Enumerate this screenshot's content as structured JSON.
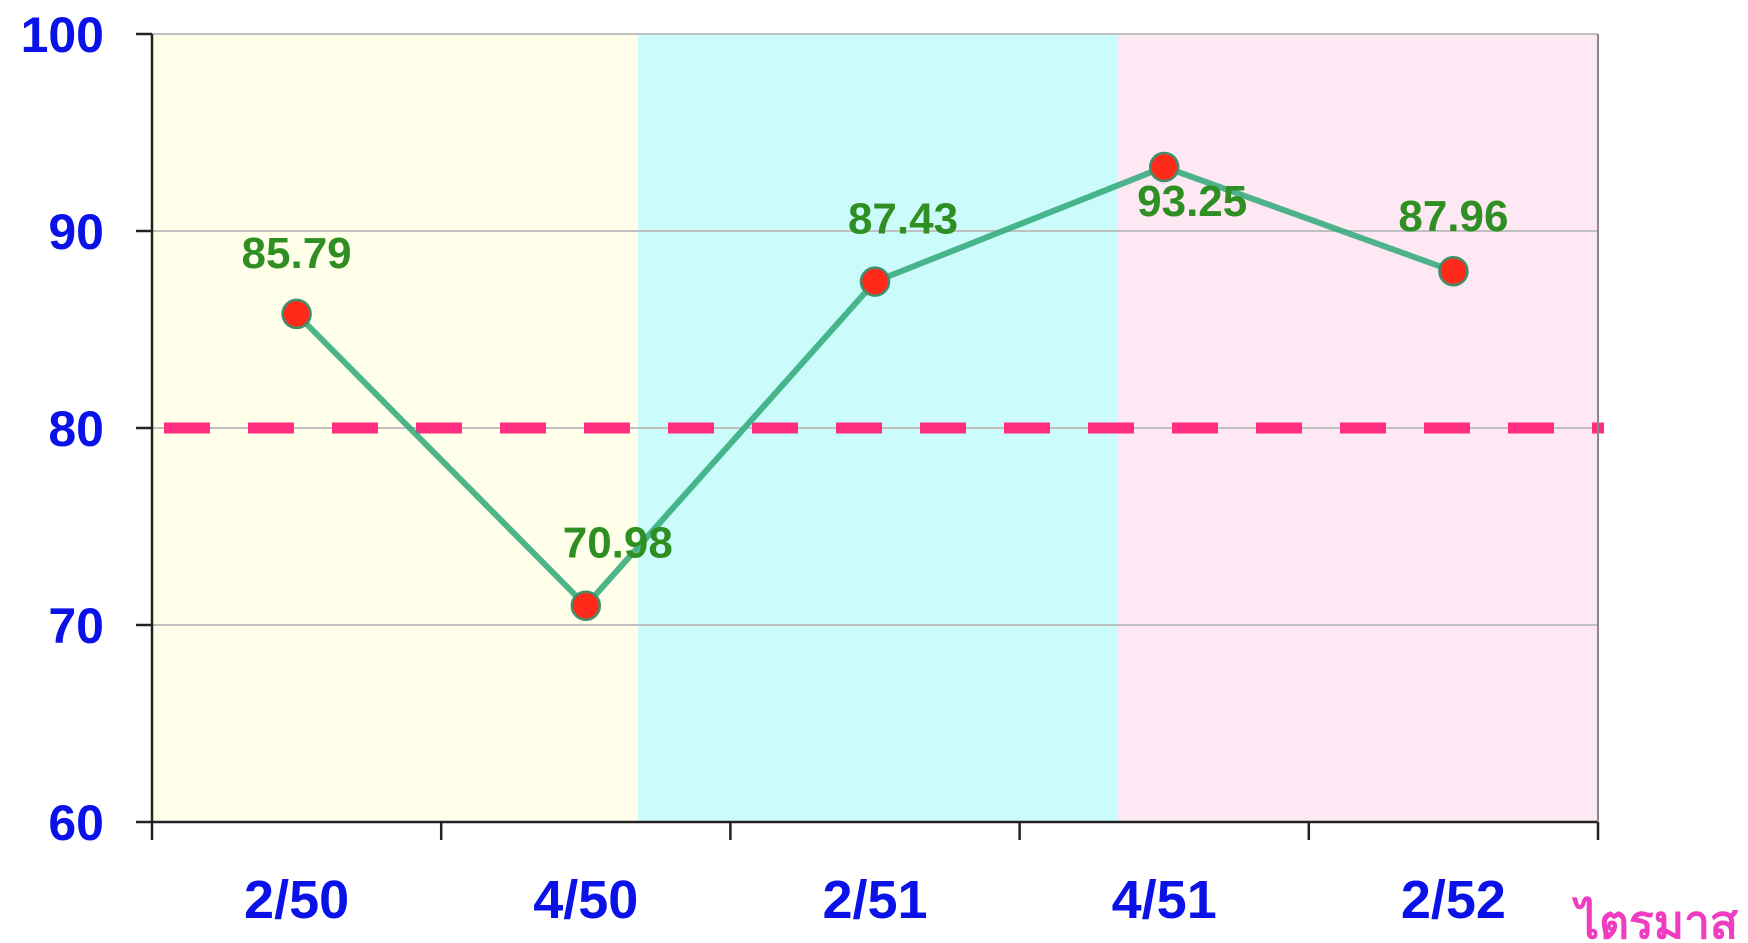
{
  "chart_data": {
    "type": "line",
    "categories": [
      "2/50",
      "4/50",
      "2/51",
      "4/51",
      "2/52"
    ],
    "series": [
      {
        "values": [
          85.79,
          70.98,
          87.43,
          93.25,
          87.96
        ],
        "color": "#2fa878",
        "marker_color": "#ff2a1a"
      }
    ],
    "data_labels": [
      "85.79",
      "70.98",
      "87.43",
      "93.25",
      "87.96"
    ],
    "xlabel": "ไตรมาส",
    "ylabel": "",
    "ylim": [
      60,
      100
    ],
    "yticks": [
      60,
      70,
      80,
      90,
      100
    ],
    "reference_line": {
      "value": 80,
      "style": "dashed",
      "color": "#ff2d80"
    },
    "background_bands": [
      {
        "from_category": 0,
        "to_category": 1,
        "color": "#ffffea"
      },
      {
        "from_category": 2,
        "to_category": 3,
        "color": "#cbfcfb"
      },
      {
        "from_category": 3,
        "to_category": 4,
        "color": "#fde8f4"
      }
    ],
    "grid": true,
    "colors": {
      "tick_text": "#0b12e8",
      "data_label": "#2f8f22",
      "axis_title": "#f03cc0"
    }
  }
}
